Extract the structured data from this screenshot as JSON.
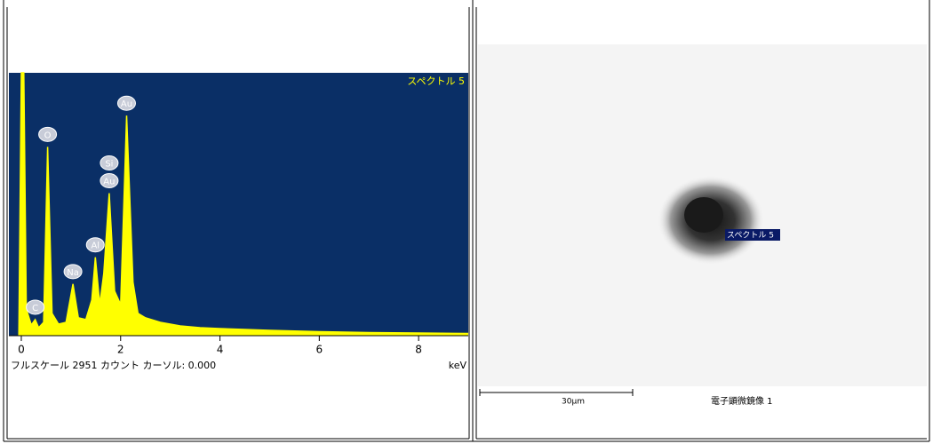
{
  "chart_data": {
    "type": "area",
    "label": "スペクトル 5",
    "x_unit": "keV",
    "footer": "フルスケール 2951 カウント カーソル: 0.000",
    "color": "#ffff00",
    "background": "#0a2f66",
    "x": [
      -0.05,
      0.0,
      0.05,
      0.1,
      0.2,
      0.28,
      0.35,
      0.45,
      0.53,
      0.62,
      0.75,
      0.9,
      1.04,
      1.15,
      1.3,
      1.42,
      1.49,
      1.58,
      1.66,
      1.77,
      1.88,
      2.0,
      2.12,
      2.25,
      2.35,
      2.5,
      2.8,
      3.2,
      3.6,
      4.0,
      4.5,
      5.0,
      6.0,
      7.0,
      8.0,
      9.0
    ],
    "values": [
      0,
      2951,
      2951,
      300,
      120,
      180,
      90,
      150,
      2120,
      250,
      130,
      150,
      580,
      200,
      180,
      400,
      880,
      350,
      700,
      1600,
      500,
      350,
      2470,
      600,
      250,
      200,
      150,
      110,
      90,
      80,
      70,
      60,
      45,
      35,
      30,
      25
    ],
    "peak_labels": [
      {
        "label": "C",
        "x": 0.28
      },
      {
        "label": "O",
        "x": 0.53
      },
      {
        "label": "Na",
        "x": 1.04
      },
      {
        "label": "Al",
        "x": 1.49
      },
      {
        "label": "Au",
        "x": 1.77
      },
      {
        "label": "Si",
        "x": 1.77
      },
      {
        "label": "Au",
        "x": 2.12
      }
    ],
    "xlim": [
      -0.25,
      9.0
    ],
    "xticks": [
      0,
      2,
      4,
      6,
      8
    ],
    "ylim": [
      0,
      2951
    ]
  },
  "image": {
    "spot_label": "スペクトル 5",
    "scale_bar": "30µm",
    "caption": "電子顕微鏡像 1"
  }
}
